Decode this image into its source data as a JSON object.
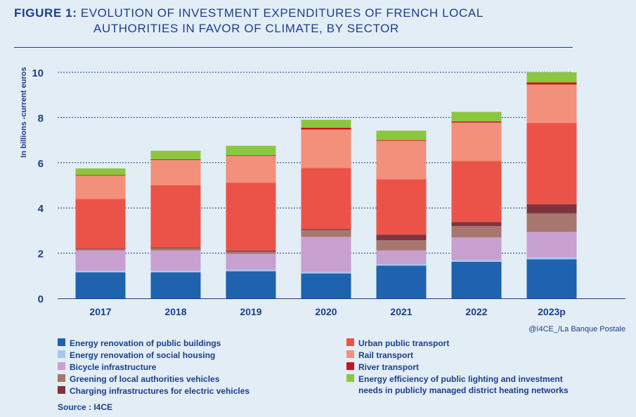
{
  "title": {
    "label": "FIGURE 1:",
    "line1": "EVOLUTION OF INVESTMENT EXPENDITURES OF FRENCH LOCAL",
    "line2": "AUTHORITIES IN FAVOR OF CLIMATE, BY SECTOR"
  },
  "credit": "@I4CE_/La Banque Postale",
  "source": "Source : I4CE",
  "chart_data": {
    "type": "bar",
    "stacked": true,
    "ylabel": "In billions -current euros",
    "ylim": [
      0,
      10
    ],
    "yticks": [
      0,
      2,
      4,
      6,
      8,
      10
    ],
    "grid": true,
    "legend_position": "bottom",
    "categories": [
      "2017",
      "2018",
      "2019",
      "2020",
      "2021",
      "2022",
      "2023p"
    ],
    "series": [
      {
        "name": "Energy renovation of public buildings",
        "color": "#1f63ae",
        "values": [
          1.15,
          1.15,
          1.2,
          1.1,
          1.45,
          1.62,
          1.73
        ]
      },
      {
        "name": "Energy renovation of social housing",
        "color": "#a8c8ea",
        "values": [
          0.07,
          0.07,
          0.07,
          0.07,
          0.07,
          0.08,
          0.09
        ]
      },
      {
        "name": "Bicycle infrastructure",
        "color": "#c7a0cf",
        "values": [
          0.9,
          0.9,
          0.7,
          1.55,
          0.6,
          1.0,
          1.12
        ]
      },
      {
        "name": "Greening of local authorities vehicles",
        "color": "#a6766f",
        "values": [
          0.05,
          0.1,
          0.1,
          0.3,
          0.45,
          0.5,
          0.82
        ]
      },
      {
        "name": "Charging infrastructures for electric vehicles",
        "color": "#7d343f",
        "values": [
          0.03,
          0.03,
          0.05,
          0.05,
          0.25,
          0.18,
          0.4
        ]
      },
      {
        "name": "Urban public transport",
        "color": "#ec5348",
        "values": [
          2.2,
          2.75,
          3.0,
          2.7,
          2.45,
          2.7,
          3.6
        ]
      },
      {
        "name": "Rail transport",
        "color": "#f2907b",
        "values": [
          1.03,
          1.12,
          1.18,
          1.7,
          1.7,
          1.7,
          1.7
        ]
      },
      {
        "name": "River transport",
        "color": "#c7141e",
        "values": [
          0.03,
          0.03,
          0.03,
          0.08,
          0.03,
          0.05,
          0.09
        ]
      },
      {
        "name": "Energy efficiency of public lighting and investment needs in publicly managed district heating networks",
        "color": "#8cc63f",
        "values": [
          0.29,
          0.38,
          0.42,
          0.35,
          0.42,
          0.42,
          0.45
        ]
      }
    ]
  },
  "legend": {
    "col1": [
      {
        "label": "Energy renovation of public buildings",
        "color": "#1f63ae"
      },
      {
        "label": "Energy renovation of social housing",
        "color": "#a8c8ea"
      },
      {
        "label": "Bicycle infrastructure",
        "color": "#c7a0cf"
      },
      {
        "label": "Greening of local authorities vehicles",
        "color": "#a6766f"
      },
      {
        "label": "Charging infrastructures for electric vehicles",
        "color": "#7d343f"
      }
    ],
    "col2": [
      {
        "label": "Urban public transport",
        "color": "#ec5348"
      },
      {
        "label": "Rail transport",
        "color": "#f2907b"
      },
      {
        "label": "River transport",
        "color": "#c7141e"
      },
      {
        "label": "Energy efficiency of public lighting and investment",
        "label2": "needs in publicly managed district heating networks",
        "color": "#8cc63f"
      }
    ]
  }
}
